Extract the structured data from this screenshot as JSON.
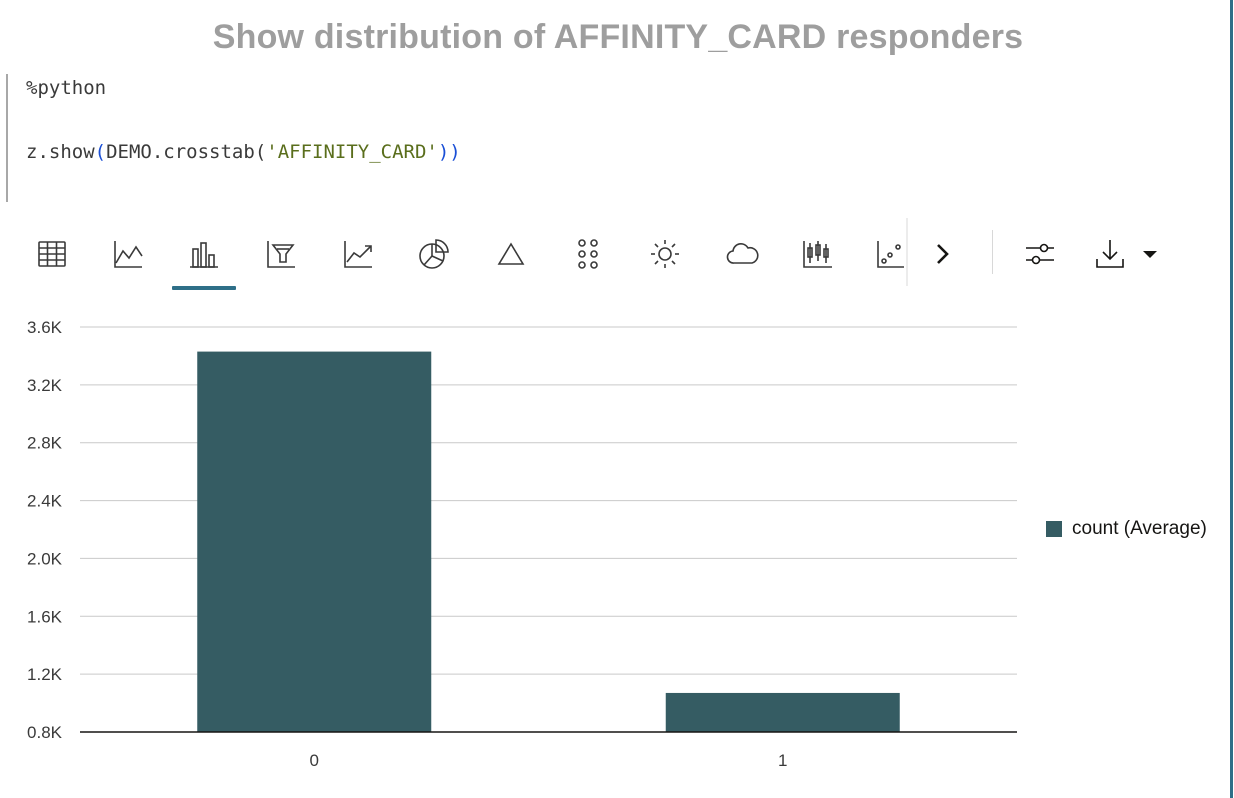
{
  "paragraph": {
    "title": "Show distribution of AFFINITY_CARD responders",
    "code": {
      "line1": "%python",
      "line2_prefix": "z.show",
      "line2_open": "(",
      "line2_call": "DEMO.crosstab",
      "line2_open2": "(",
      "line2_arg": "'AFFINITY_CARD'",
      "line2_close": "))"
    }
  },
  "toolbar": {
    "buttons": [
      {
        "icon": "table-icon",
        "label": "Table",
        "active": false
      },
      {
        "icon": "line-chart-icon",
        "label": "Line Chart",
        "active": false
      },
      {
        "icon": "bar-chart-icon",
        "label": "Bar Chart",
        "active": true
      },
      {
        "icon": "funnel-chart-icon",
        "label": "Funnel Chart",
        "active": false
      },
      {
        "icon": "trend-chart-icon",
        "label": "Area Chart",
        "active": false
      },
      {
        "icon": "pie-chart-icon",
        "label": "Pie Chart",
        "active": false
      },
      {
        "icon": "pyramid-chart-icon",
        "label": "Pyramid Chart",
        "active": false
      },
      {
        "icon": "scatter-dots-icon",
        "label": "Scatter Plot",
        "active": false
      },
      {
        "icon": "sunburst-chart-icon",
        "label": "Sunburst",
        "active": false
      },
      {
        "icon": "tag-cloud-icon",
        "label": "Tag Cloud",
        "active": false
      },
      {
        "icon": "boxplot-chart-icon",
        "label": "Box Plot",
        "active": false
      },
      {
        "icon": "bubble-chart-icon",
        "label": "Bubble Chart",
        "active": false
      }
    ],
    "more_icon": "chevron-right-icon",
    "settings_icon": "sliders-icon",
    "download_icon": "download-icon",
    "download_menu_icon": "caret-down-icon",
    "accent_color": "#2e6f88"
  },
  "chart_data": {
    "type": "bar",
    "categories": [
      "0",
      "1"
    ],
    "series": [
      {
        "name": "count (Average)",
        "values": [
          3430,
          1070
        ],
        "color": "#355c63"
      }
    ],
    "ylim": [
      800,
      3600
    ],
    "yticks": [
      800,
      1200,
      1600,
      2000,
      2400,
      2800,
      3200,
      3600
    ],
    "ytick_labels": [
      "0.8K",
      "1.2K",
      "1.6K",
      "2.0K",
      "2.4K",
      "2.8K",
      "3.2K",
      "3.6K"
    ],
    "grid": true,
    "legend": "right"
  }
}
